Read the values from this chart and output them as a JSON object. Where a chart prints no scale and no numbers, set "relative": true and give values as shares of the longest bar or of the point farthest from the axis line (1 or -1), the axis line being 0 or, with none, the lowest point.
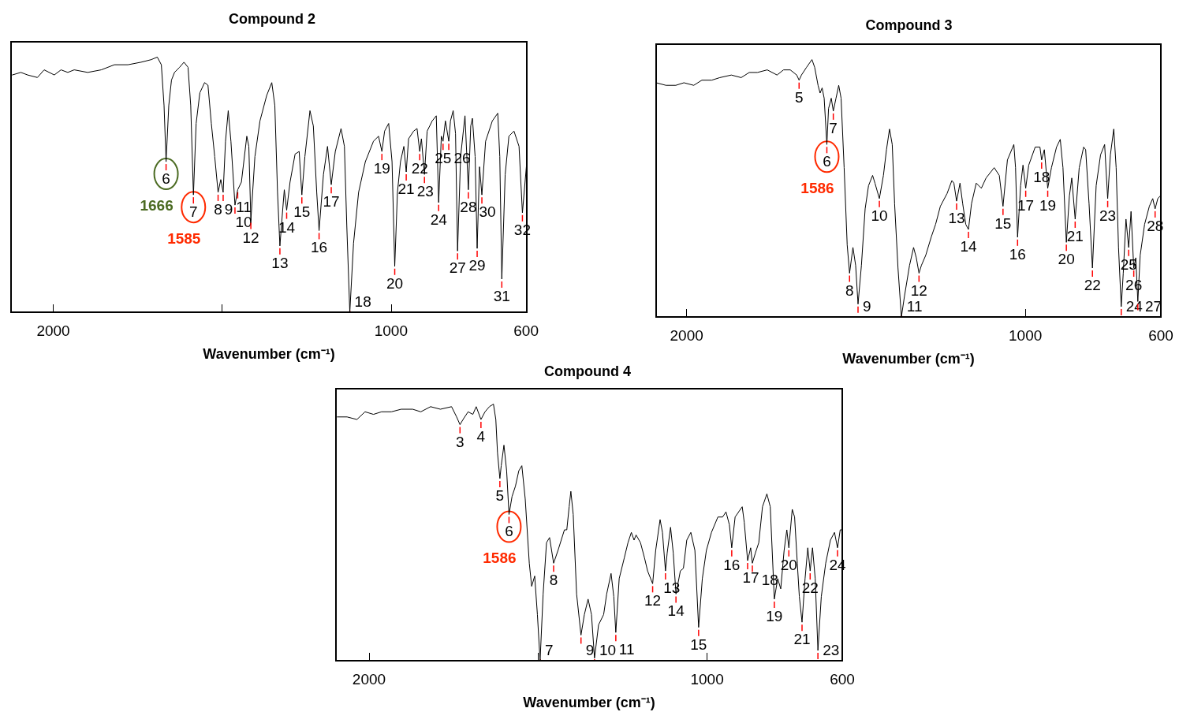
{
  "chart_data": [
    {
      "type": "line",
      "title": "Compound 2",
      "xlabel": "Wavenumber (cm⁻¹)",
      "relative": true,
      "xlim": [
        2125,
        598
      ],
      "xticks": [
        2000,
        {
          "value": 1500,
          "label": null
        },
        1000,
        600
      ],
      "tick_labels": "x",
      "series": [
        {
          "color": "#000000",
          "x": [
            2121,
            2096,
            2076,
            2047,
            2027,
            1997,
            1977,
            1957,
            1938,
            1898,
            1858,
            1819,
            1779,
            1740,
            1710,
            1692,
            1680,
            1672,
            1666,
            1658,
            1650,
            1641,
            1626,
            1613,
            1601,
            1593,
            1585,
            1577,
            1566,
            1552,
            1542,
            1532,
            1522,
            1512,
            1504,
            1497,
            1490,
            1482,
            1474,
            1462,
            1454,
            1443,
            1427,
            1421,
            1415,
            1403,
            1388,
            1368,
            1353,
            1344,
            1336,
            1329,
            1322,
            1316,
            1309,
            1299,
            1284,
            1272,
            1264,
            1255,
            1240,
            1230,
            1220,
            1213,
            1200,
            1188,
            1177,
            1165,
            1148,
            1138,
            1131,
            1122,
            1111,
            1096,
            1076,
            1052,
            1037,
            1027,
            1019,
            1007,
            997,
            989,
            981,
            972,
            962,
            955,
            948,
            933,
            923,
            915,
            910,
            901,
            893,
            878,
            866,
            859,
            851,
            846,
            839,
            829,
            824,
            816,
            809,
            803,
            794,
            781,
            771,
            764,
            759,
            751,
            745,
            738,
            731,
            720,
            700,
            684,
            678,
            672,
            662,
            651,
            636,
            621,
            611,
            598
          ],
          "values": [
            0.93,
            0.94,
            0.93,
            0.92,
            0.95,
            0.93,
            0.95,
            0.94,
            0.95,
            0.94,
            0.95,
            0.97,
            0.97,
            0.98,
            0.99,
            1.0,
            0.97,
            0.81,
            0.59,
            0.81,
            0.91,
            0.94,
            0.96,
            0.98,
            0.96,
            0.81,
            0.46,
            0.74,
            0.86,
            0.9,
            0.89,
            0.74,
            0.61,
            0.47,
            0.52,
            0.47,
            0.67,
            0.79,
            0.67,
            0.42,
            0.48,
            0.51,
            0.69,
            0.65,
            0.36,
            0.61,
            0.75,
            0.85,
            0.9,
            0.81,
            0.47,
            0.26,
            0.38,
            0.48,
            0.4,
            0.51,
            0.62,
            0.63,
            0.46,
            0.61,
            0.79,
            0.73,
            0.47,
            0.32,
            0.54,
            0.65,
            0.5,
            0.63,
            0.72,
            0.65,
            0.34,
            0.0,
            0.27,
            0.47,
            0.59,
            0.67,
            0.69,
            0.63,
            0.71,
            0.74,
            0.59,
            0.18,
            0.47,
            0.59,
            0.65,
            0.55,
            0.68,
            0.71,
            0.72,
            0.63,
            0.68,
            0.54,
            0.71,
            0.75,
            0.77,
            0.43,
            0.69,
            0.67,
            0.75,
            0.67,
            0.75,
            0.79,
            0.7,
            0.24,
            0.61,
            0.77,
            0.48,
            0.73,
            0.76,
            0.61,
            0.25,
            0.57,
            0.46,
            0.67,
            0.75,
            0.78,
            0.61,
            0.13,
            0.54,
            0.69,
            0.71,
            0.65,
            0.39,
            0.59
          ]
        }
      ],
      "annotations": [
        {
          "text": "6",
          "x": 1666,
          "y": 0.59
        },
        {
          "text": "7",
          "x": 1585,
          "y": 0.46
        },
        {
          "text": "8",
          "x": 1512,
          "y": 0.47
        },
        {
          "text": "9",
          "x": 1497,
          "y": 0.47
        },
        {
          "text": "10",
          "x": 1462,
          "y": 0.42
        },
        {
          "text": "11",
          "x": 1454,
          "y": 0.48
        },
        {
          "text": "12",
          "x": 1415,
          "y": 0.36
        },
        {
          "text": "13",
          "x": 1329,
          "y": 0.26
        },
        {
          "text": "14",
          "x": 1309,
          "y": 0.4
        },
        {
          "text": "15",
          "x": 1264,
          "y": 0.46
        },
        {
          "text": "16",
          "x": 1213,
          "y": 0.32
        },
        {
          "text": "17",
          "x": 1177,
          "y": 0.5
        },
        {
          "text": "18",
          "x": 1122,
          "y": 0.0
        },
        {
          "text": "19",
          "x": 1027,
          "y": 0.63
        },
        {
          "text": "20",
          "x": 989,
          "y": 0.18
        },
        {
          "text": "21",
          "x": 955,
          "y": 0.55
        },
        {
          "text": "22",
          "x": 915,
          "y": 0.63
        },
        {
          "text": "23",
          "x": 901,
          "y": 0.54
        },
        {
          "text": "24",
          "x": 859,
          "y": 0.43
        },
        {
          "text": "25",
          "x": 846,
          "y": 0.67
        },
        {
          "text": "26",
          "x": 829,
          "y": 0.67
        },
        {
          "text": "27",
          "x": 803,
          "y": 0.24
        },
        {
          "text": "28",
          "x": 771,
          "y": 0.48
        },
        {
          "text": "29",
          "x": 745,
          "y": 0.25
        },
        {
          "text": "30",
          "x": 731,
          "y": 0.46
        },
        {
          "text": "31",
          "x": 672,
          "y": 0.13
        },
        {
          "text": "32",
          "x": 611,
          "y": 0.39
        },
        {
          "text": "1666",
          "x": 1666,
          "y": 0.59
        },
        {
          "text": "1585",
          "x": 1585,
          "y": 0.46
        }
      ]
    },
    {
      "type": "line",
      "title": "Compound 3",
      "xlabel": "Wavenumber (cm⁻¹)",
      "relative": true,
      "xlim": [
        2090,
        600
      ],
      "xticks": [
        2000,
        1000,
        600
      ],
      "tick_labels": "x",
      "series": [
        {
          "color": "#000000",
          "x": [
            2090,
            2061,
            2032,
            2008,
            1979,
            1955,
            1926,
            1902,
            1868,
            1839,
            1815,
            1791,
            1762,
            1733,
            1714,
            1694,
            1675,
            1668,
            1661,
            1646,
            1630,
            1622,
            1612,
            1606,
            1600,
            1594,
            1586,
            1581,
            1573,
            1567,
            1559,
            1551,
            1544,
            1535,
            1526,
            1519,
            1509,
            1501,
            1494,
            1484,
            1473,
            1463,
            1451,
            1444,
            1431,
            1419,
            1410,
            1401,
            1393,
            1386,
            1376,
            1366,
            1357,
            1342,
            1330,
            1322,
            1314,
            1307,
            1294,
            1278,
            1265,
            1251,
            1231,
            1217,
            1211,
            1203,
            1193,
            1185,
            1176,
            1168,
            1159,
            1145,
            1130,
            1116,
            1092,
            1077,
            1066,
            1053,
            1034,
            1029,
            1023,
            1014,
            1007,
            999,
            990,
            971,
            957,
            952,
            944,
            934,
            923,
            908,
            897,
            889,
            879,
            870,
            863,
            853,
            841,
            828,
            822,
            812,
            802,
            791,
            778,
            766,
            757,
            749,
            739,
            732,
            725,
            717,
            711,
            703,
            695,
            688,
            680,
            674,
            668,
            661,
            648,
            634,
            624,
            617,
            609,
            602
          ],
          "values": [
            0.91,
            0.9,
            0.9,
            0.91,
            0.9,
            0.92,
            0.92,
            0.93,
            0.94,
            0.93,
            0.95,
            0.95,
            0.96,
            0.94,
            0.96,
            0.96,
            0.94,
            0.92,
            0.94,
            0.97,
            1.0,
            0.97,
            0.9,
            0.87,
            0.89,
            0.85,
            0.67,
            0.81,
            0.85,
            0.8,
            0.85,
            0.9,
            0.85,
            0.58,
            0.28,
            0.17,
            0.27,
            0.2,
            0.05,
            0.2,
            0.42,
            0.51,
            0.55,
            0.52,
            0.46,
            0.55,
            0.65,
            0.73,
            0.67,
            0.44,
            0.19,
            0.0,
            0.08,
            0.2,
            0.27,
            0.23,
            0.17,
            0.2,
            0.24,
            0.31,
            0.36,
            0.43,
            0.48,
            0.53,
            0.52,
            0.45,
            0.52,
            0.44,
            0.36,
            0.34,
            0.44,
            0.52,
            0.5,
            0.54,
            0.58,
            0.55,
            0.43,
            0.61,
            0.67,
            0.58,
            0.31,
            0.51,
            0.59,
            0.5,
            0.59,
            0.66,
            0.66,
            0.61,
            0.65,
            0.5,
            0.58,
            0.66,
            0.69,
            0.58,
            0.29,
            0.47,
            0.54,
            0.38,
            0.58,
            0.66,
            0.65,
            0.44,
            0.19,
            0.51,
            0.63,
            0.67,
            0.46,
            0.63,
            0.73,
            0.58,
            0.27,
            0.04,
            0.17,
            0.38,
            0.27,
            0.41,
            0.19,
            0.23,
            0.06,
            0.24,
            0.36,
            0.43,
            0.46,
            0.42,
            0.46,
            0.47
          ]
        }
      ],
      "annotations": [
        {
          "text": "5",
          "x": 1668,
          "y": 0.92
        },
        {
          "text": "6",
          "x": 1586,
          "y": 0.67
        },
        {
          "text": "7",
          "x": 1567,
          "y": 0.8
        },
        {
          "text": "8",
          "x": 1519,
          "y": 0.17
        },
        {
          "text": "9",
          "x": 1494,
          "y": 0.05
        },
        {
          "text": "10",
          "x": 1431,
          "y": 0.46
        },
        {
          "text": "11",
          "x": 1366,
          "y": 0.0
        },
        {
          "text": "12",
          "x": 1314,
          "y": 0.17
        },
        {
          "text": "13",
          "x": 1203,
          "y": 0.45
        },
        {
          "text": "14",
          "x": 1168,
          "y": 0.34
        },
        {
          "text": "15",
          "x": 1066,
          "y": 0.43
        },
        {
          "text": "16",
          "x": 1023,
          "y": 0.31
        },
        {
          "text": "17",
          "x": 999,
          "y": 0.5
        },
        {
          "text": "18",
          "x": 952,
          "y": 0.61
        },
        {
          "text": "19",
          "x": 934,
          "y": 0.5
        },
        {
          "text": "20",
          "x": 879,
          "y": 0.29
        },
        {
          "text": "21",
          "x": 853,
          "y": 0.38
        },
        {
          "text": "22",
          "x": 802,
          "y": 0.19
        },
        {
          "text": "23",
          "x": 757,
          "y": 0.46
        },
        {
          "text": "24",
          "x": 717,
          "y": 0.04
        },
        {
          "text": "25",
          "x": 695,
          "y": 0.27
        },
        {
          "text": "26",
          "x": 680,
          "y": 0.19
        },
        {
          "text": "27",
          "x": 668,
          "y": 0.06
        },
        {
          "text": "28",
          "x": 617,
          "y": 0.42
        },
        {
          "text": "1586",
          "x": 1586,
          "y": 0.67
        }
      ]
    },
    {
      "type": "line",
      "title": "Compound 4",
      "xlabel": "Wavenumber (cm⁻¹)",
      "relative": true,
      "xlim": [
        2098,
        600
      ],
      "xticks": [
        2000,
        {
          "value": 1500,
          "label": null
        },
        1000,
        600
      ],
      "tick_labels": "x",
      "series": [
        {
          "color": "#000000",
          "x": [
            2094,
            2065,
            2036,
            2012,
            1987,
            1963,
            1934,
            1905,
            1871,
            1847,
            1818,
            1789,
            1756,
            1741,
            1731,
            1722,
            1707,
            1693,
            1683,
            1669,
            1657,
            1644,
            1632,
            1625,
            1620,
            1613,
            1609,
            1601,
            1593,
            1586,
            1577,
            1567,
            1557,
            1548,
            1538,
            1526,
            1519,
            1510,
            1502,
            1494,
            1485,
            1475,
            1466,
            1460,
            1454,
            1441,
            1422,
            1415,
            1408,
            1403,
            1396,
            1386,
            1373,
            1363,
            1352,
            1342,
            1333,
            1321,
            1306,
            1297,
            1284,
            1276,
            1270,
            1260,
            1245,
            1234,
            1224,
            1216,
            1210,
            1197,
            1185,
            1176,
            1161,
            1152,
            1139,
            1132,
            1123,
            1118,
            1108,
            1100,
            1092,
            1079,
            1070,
            1060,
            1048,
            1036,
            1025,
            1014,
            1002,
            987,
            968,
            954,
            944,
            934,
            927,
            917,
            896,
            890,
            880,
            871,
            866,
            857,
            847,
            836,
            823,
            813,
            801,
            791,
            782,
            772,
            764,
            758,
            748,
            741,
            733,
            727,
            719,
            710,
            702,
            695,
            688,
            680,
            672,
            662,
            649,
            635,
            623,
            614,
            606,
            601
          ],
          "values": [
            0.95,
            0.95,
            0.94,
            0.97,
            0.96,
            0.97,
            0.97,
            0.98,
            0.98,
            0.97,
            0.99,
            0.98,
            0.99,
            0.95,
            0.92,
            0.94,
            0.97,
            0.96,
            0.99,
            0.94,
            0.97,
            0.99,
            1.0,
            0.94,
            0.81,
            0.71,
            0.76,
            0.84,
            0.74,
            0.57,
            0.64,
            0.68,
            0.74,
            0.76,
            0.63,
            0.38,
            0.29,
            0.33,
            0.18,
            0.0,
            0.26,
            0.46,
            0.48,
            0.43,
            0.38,
            0.43,
            0.51,
            0.51,
            0.6,
            0.66,
            0.57,
            0.26,
            0.1,
            0.18,
            0.24,
            0.18,
            0.01,
            0.14,
            0.18,
            0.26,
            0.34,
            0.25,
            0.11,
            0.32,
            0.4,
            0.46,
            0.5,
            0.47,
            0.49,
            0.46,
            0.4,
            0.35,
            0.3,
            0.43,
            0.55,
            0.5,
            0.35,
            0.42,
            0.52,
            0.42,
            0.26,
            0.35,
            0.36,
            0.47,
            0.5,
            0.43,
            0.13,
            0.32,
            0.43,
            0.5,
            0.56,
            0.56,
            0.58,
            0.53,
            0.44,
            0.56,
            0.6,
            0.54,
            0.39,
            0.44,
            0.38,
            0.42,
            0.46,
            0.6,
            0.65,
            0.6,
            0.24,
            0.32,
            0.28,
            0.43,
            0.51,
            0.44,
            0.59,
            0.56,
            0.38,
            0.25,
            0.15,
            0.32,
            0.44,
            0.35,
            0.44,
            0.32,
            0.04,
            0.25,
            0.38,
            0.47,
            0.5,
            0.44,
            0.51,
            0.51
          ]
        }
      ],
      "annotations": [
        {
          "text": "3",
          "x": 1731,
          "y": 0.92
        },
        {
          "text": "4",
          "x": 1669,
          "y": 0.94
        },
        {
          "text": "5",
          "x": 1613,
          "y": 0.71
        },
        {
          "text": "6",
          "x": 1586,
          "y": 0.57
        },
        {
          "text": "7",
          "x": 1494,
          "y": 0.0
        },
        {
          "text": "8",
          "x": 1454,
          "y": 0.38
        },
        {
          "text": "9",
          "x": 1373,
          "y": 0.1
        },
        {
          "text": "10",
          "x": 1333,
          "y": 0.01
        },
        {
          "text": "11",
          "x": 1270,
          "y": 0.11
        },
        {
          "text": "12",
          "x": 1161,
          "y": 0.3
        },
        {
          "text": "13",
          "x": 1123,
          "y": 0.35
        },
        {
          "text": "14",
          "x": 1092,
          "y": 0.26
        },
        {
          "text": "15",
          "x": 1025,
          "y": 0.13
        },
        {
          "text": "16",
          "x": 927,
          "y": 0.44
        },
        {
          "text": "17",
          "x": 880,
          "y": 0.39
        },
        {
          "text": "18",
          "x": 866,
          "y": 0.38
        },
        {
          "text": "19",
          "x": 801,
          "y": 0.24
        },
        {
          "text": "20",
          "x": 758,
          "y": 0.44
        },
        {
          "text": "21",
          "x": 719,
          "y": 0.15
        },
        {
          "text": "22",
          "x": 695,
          "y": 0.35
        },
        {
          "text": "23",
          "x": 672,
          "y": 0.04
        },
        {
          "text": "24",
          "x": 614,
          "y": 0.44
        },
        {
          "text": "1586",
          "x": 1586,
          "y": 0.57
        }
      ]
    }
  ]
}
